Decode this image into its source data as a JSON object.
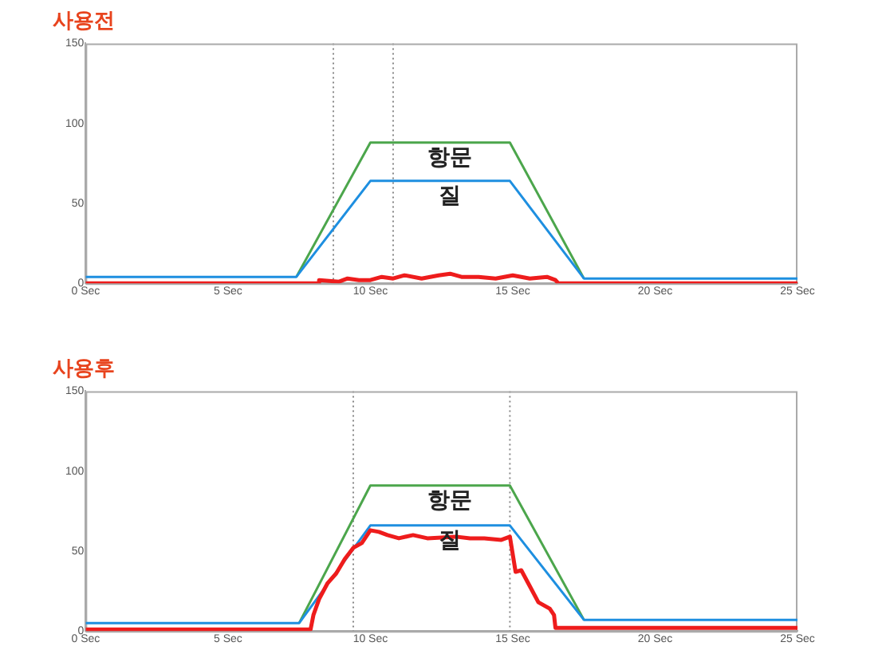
{
  "chart_data": [
    {
      "type": "line",
      "title": "사용전",
      "xlim": [
        0,
        25
      ],
      "ylim": [
        0,
        150
      ],
      "xticks": [
        {
          "value": 0,
          "label": "0 Sec"
        },
        {
          "value": 5,
          "label": "5 Sec"
        },
        {
          "value": 10,
          "label": "10 Sec"
        },
        {
          "value": 15,
          "label": "15 Sec"
        },
        {
          "value": 20,
          "label": "20 Sec"
        },
        {
          "value": 25,
          "label": "25 Sec"
        }
      ],
      "yticks": [
        0,
        50,
        100,
        150
      ],
      "grid": false,
      "legend": false,
      "marker": "none",
      "line_style": "solid",
      "ref_lines": [
        {
          "axis": "x",
          "value": 8.7,
          "label": null,
          "color": "#888888",
          "line_style": "dotted"
        },
        {
          "axis": "x",
          "value": 10.8,
          "label": null,
          "color": "#888888",
          "line_style": "dotted"
        }
      ],
      "series": [
        {
          "name": "항문",
          "color": "#4ca64c",
          "x": [
            7.4,
            10,
            14.9,
            17.5
          ],
          "values": [
            4,
            88,
            88,
            3
          ]
        },
        {
          "name": "질",
          "color": "#1e8fe0",
          "x": [
            0,
            7.4,
            10,
            14.9,
            17.5,
            25
          ],
          "values": [
            4,
            4,
            64,
            64,
            3,
            3
          ]
        },
        {
          "color": "#ee1c1c",
          "x": [
            0,
            8.2,
            8.2,
            8.9,
            9.2,
            9.6,
            10,
            10.4,
            10.8,
            11.2,
            11.8,
            12.4,
            12.8,
            13.2,
            13.8,
            14.4,
            15,
            15.6,
            16.2,
            16.5,
            16.6,
            25
          ],
          "values": [
            0,
            0,
            2,
            1,
            3,
            2,
            2,
            4,
            3,
            5,
            3,
            5,
            6,
            4,
            4,
            3,
            5,
            3,
            4,
            2,
            0,
            0
          ]
        }
      ]
    },
    {
      "type": "line",
      "title": "사용후",
      "xlim": [
        0,
        25
      ],
      "ylim": [
        0,
        150
      ],
      "xticks": [
        {
          "value": 0,
          "label": "0 Sec"
        },
        {
          "value": 5,
          "label": "5 Sec"
        },
        {
          "value": 10,
          "label": "10 Sec"
        },
        {
          "value": 15,
          "label": "15 Sec"
        },
        {
          "value": 20,
          "label": "20 Sec"
        },
        {
          "value": 25,
          "label": "25 Sec"
        }
      ],
      "yticks": [
        0,
        50,
        100,
        150
      ],
      "grid": false,
      "legend": false,
      "marker": "none",
      "line_style": "solid",
      "ref_lines": [
        {
          "axis": "x",
          "value": 9.4,
          "label": null,
          "color": "#888888",
          "line_style": "dotted"
        },
        {
          "axis": "x",
          "value": 14.9,
          "label": null,
          "color": "#888888",
          "line_style": "dotted"
        }
      ],
      "series": [
        {
          "name": "항문",
          "color": "#4ca64c",
          "x": [
            7.5,
            10,
            14.9,
            17.5
          ],
          "values": [
            5,
            91,
            91,
            7
          ]
        },
        {
          "name": "질",
          "color": "#1e8fe0",
          "x": [
            0,
            7.5,
            10,
            14.9,
            17.5,
            25
          ],
          "values": [
            5,
            5,
            66,
            66,
            7,
            7
          ]
        },
        {
          "color": "#ee1c1c",
          "x": [
            0,
            7.9,
            8,
            8.2,
            8.5,
            8.8,
            9.1,
            9.4,
            9.7,
            10,
            10.3,
            10.6,
            11,
            11.5,
            12,
            13,
            13.5,
            14,
            14.6,
            14.9,
            15.1,
            15.3,
            15.6,
            15.9,
            16.3,
            16.45,
            16.5,
            25
          ],
          "values": [
            1,
            1,
            10,
            20,
            30,
            36,
            45,
            52,
            55,
            63,
            62,
            60,
            58,
            60,
            58,
            59,
            58,
            58,
            57,
            59,
            37,
            38,
            28,
            18,
            14,
            10,
            2,
            2
          ]
        }
      ]
    }
  ]
}
